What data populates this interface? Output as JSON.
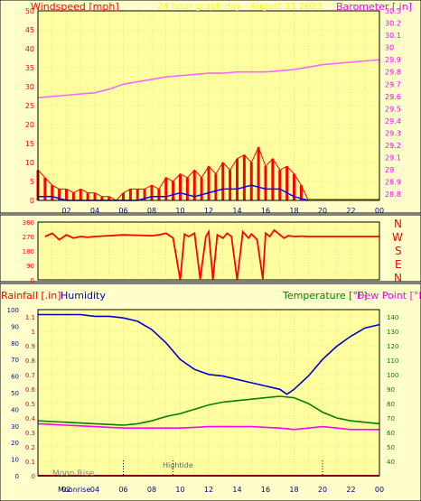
{
  "header": {
    "left_title": "Windspeed [mph]",
    "center_title": "24 hour graph day - August 11 2023",
    "right_title": "Barometer [.in]"
  },
  "colors": {
    "page_bg": "#ffffff",
    "panel_outer": "#ffffcc",
    "plot_bg": "#ffffa0",
    "grid": "#d8c890",
    "minor_grid": "#b0a880",
    "border": "#000000",
    "wind_axis_text": "#ff0000",
    "baro_axis_text": "#ff00ff",
    "title_center": "#ffff00",
    "wind_speed": "#ff0000",
    "wind_gust_blue": "#0000ff",
    "wind_green": "#008000",
    "barometer_line": "#ff66ff",
    "direction": "#ff0000",
    "compass_labels": "#ff0000",
    "rainfall": "#ff0000",
    "humidity": "#0000cc",
    "temperature": "#008000",
    "dewpoint": "#ff00ff",
    "x_labels": "#000080",
    "tide_marker": "#606060"
  },
  "chart_data": [
    {
      "type": "line",
      "name": "wind-barometer",
      "title": "24 hour graph day - August 11 2023",
      "xlabel": "",
      "ylabel_left": "Windspeed [mph]",
      "ylabel_right": "Barometer [.in]",
      "x_ticks": [
        "02",
        "04",
        "06",
        "08",
        "10",
        "12",
        "14",
        "16",
        "18",
        "20",
        "22",
        "00"
      ],
      "x_range": [
        0,
        24
      ],
      "y_left_range": [
        0,
        50
      ],
      "y_left_ticks": [
        0,
        5,
        10,
        15,
        20,
        25,
        30,
        35,
        40,
        45,
        50
      ],
      "y_right_range": [
        28.75,
        30.3
      ],
      "y_right_ticks": [
        "28.8",
        "28.9",
        "29",
        "29.1",
        "29.2",
        "29.3",
        "29.4",
        "29.5",
        "29.6",
        "29.7",
        "29.8",
        "29.9",
        "30",
        "30.1",
        "30.2",
        "30.3"
      ],
      "grid": true,
      "series": [
        {
          "name": "Barometer",
          "axis": "right",
          "x": [
            0,
            1,
            2,
            3,
            4,
            5,
            6,
            7,
            8,
            9,
            10,
            11,
            12,
            13,
            14,
            15,
            16,
            17,
            18,
            19,
            20,
            21,
            22,
            23,
            24
          ],
          "y": [
            29.59,
            29.6,
            29.61,
            29.62,
            29.63,
            29.66,
            29.7,
            29.72,
            29.74,
            29.76,
            29.77,
            29.78,
            29.79,
            29.79,
            29.8,
            29.8,
            29.8,
            29.81,
            29.82,
            29.84,
            29.86,
            29.87,
            29.88,
            29.89,
            29.9
          ]
        },
        {
          "name": "Wind speed",
          "axis": "left",
          "x": [
            0,
            0.5,
            1,
            1.5,
            2,
            2.5,
            3,
            3.5,
            4,
            4.5,
            5,
            5.5,
            6,
            6.5,
            7,
            7.5,
            8,
            8.5,
            9,
            9.5,
            10,
            10.5,
            11,
            11.5,
            12,
            12.5,
            13,
            13.5,
            14,
            14.5,
            15,
            15.5,
            16,
            16.5,
            17,
            17.5,
            18,
            18.5,
            19
          ],
          "y": [
            8,
            6,
            4,
            3,
            3,
            2,
            3,
            2,
            2,
            1,
            1,
            0,
            2,
            3,
            3,
            3,
            4,
            3,
            6,
            5,
            7,
            6,
            8,
            6,
            9,
            7,
            10,
            8,
            11,
            12,
            10,
            14,
            9,
            11,
            8,
            9,
            7,
            4,
            0
          ]
        },
        {
          "name": "Gust",
          "axis": "left",
          "x": [
            0,
            1,
            2,
            3,
            4,
            5,
            6,
            7,
            8,
            9,
            10,
            11,
            12,
            13,
            14,
            15,
            16,
            17,
            18,
            19
          ],
          "y": [
            1,
            1,
            0,
            0,
            0,
            0,
            0,
            0,
            1,
            1,
            2,
            1,
            2,
            3,
            3,
            4,
            3,
            3,
            1,
            0
          ]
        }
      ]
    },
    {
      "type": "line",
      "name": "wind-direction",
      "x_range": [
        0,
        24
      ],
      "y_range": [
        0,
        360
      ],
      "y_ticks": [
        0,
        45,
        90,
        135,
        180,
        225,
        270,
        315,
        360
      ],
      "compass_labels": [
        "N",
        "W",
        "S",
        "E",
        "N"
      ],
      "series": [
        {
          "name": "Wind direction",
          "x": [
            0.5,
            1,
            1.5,
            2,
            2.5,
            3,
            3.5,
            4,
            5,
            6,
            7,
            8,
            8.5,
            9,
            9.5,
            10,
            10.3,
            10.6,
            11,
            11.4,
            11.8,
            12,
            12.3,
            12.6,
            13,
            13.3,
            13.6,
            14,
            14.4,
            14.8,
            15,
            15.4,
            15.8,
            16,
            16.3,
            16.6,
            17,
            17.3,
            17.6,
            18,
            18.5,
            19,
            20,
            22,
            24
          ],
          "y": [
            270,
            290,
            250,
            280,
            260,
            270,
            265,
            270,
            275,
            280,
            278,
            275,
            280,
            290,
            260,
            0,
            285,
            270,
            290,
            5,
            270,
            300,
            0,
            280,
            260,
            290,
            270,
            0,
            300,
            260,
            285,
            250,
            5,
            290,
            270,
            310,
            280,
            260,
            275,
            270,
            272,
            270,
            270,
            270,
            270
          ]
        }
      ]
    },
    {
      "type": "line",
      "name": "temp-humidity",
      "ylabel_left_1": "Rainfall [.in]",
      "ylabel_left_2": "Humidity",
      "ylabel_right_1": "Temperature [°F]",
      "ylabel_right_2": "Dew Point [°F]",
      "x_ticks": [
        "02",
        "04",
        "06",
        "08",
        "10",
        "12",
        "14",
        "16",
        "18",
        "20",
        "22",
        "00"
      ],
      "x_range": [
        0,
        24
      ],
      "humidity_range": [
        0,
        100
      ],
      "humidity_ticks": [
        0,
        10,
        20,
        30,
        40,
        50,
        60,
        70,
        80,
        90,
        100
      ],
      "rain_range": [
        0,
        1.15
      ],
      "rain_ticks": [
        "0",
        "0.05",
        "0.1",
        "0.15",
        "0.2",
        "0.25",
        "0.3",
        "0.35",
        "0.4",
        "0.45",
        "0.5",
        "0.55",
        "0.6",
        "0.65",
        "0.7",
        "0.75",
        "0.8",
        "0.85",
        "0.9",
        "0.95",
        "1",
        "1.05",
        "1.1"
      ],
      "temp_range": [
        30,
        145
      ],
      "temp_ticks": [
        40,
        50,
        60,
        70,
        80,
        90,
        100,
        110,
        120,
        130,
        140
      ],
      "annotations": [
        {
          "label": "Moon Rise",
          "x": 2.4
        },
        {
          "label": "Hightide",
          "x": 9.5
        },
        {
          "label": "Moonrise",
          "x": 2.4
        }
      ],
      "tide_marks_x": [
        6,
        9.5,
        20
      ],
      "series": [
        {
          "name": "Humidity",
          "axis": "humidity",
          "x": [
            0,
            1,
            2,
            3,
            4,
            5,
            6,
            7,
            8,
            9,
            10,
            11,
            12,
            13,
            14,
            15,
            16,
            17,
            17.5,
            18,
            19,
            20,
            21,
            22,
            23,
            24
          ],
          "y": [
            97,
            97,
            97,
            97,
            96,
            96,
            95,
            93,
            88,
            80,
            70,
            64,
            61,
            60,
            58,
            56,
            54,
            52,
            49,
            52,
            60,
            70,
            78,
            84,
            89,
            91
          ]
        },
        {
          "name": "Temperature",
          "axis": "temp",
          "x": [
            0,
            1,
            2,
            3,
            4,
            5,
            6,
            7,
            8,
            9,
            10,
            11,
            12,
            13,
            14,
            15,
            16,
            17,
            18,
            19,
            20,
            21,
            22,
            23,
            24
          ],
          "y": [
            68,
            67.5,
            67,
            66.5,
            66,
            65.5,
            65,
            66,
            68,
            71,
            73,
            76,
            79,
            81,
            82,
            83,
            84,
            85,
            84,
            80,
            74,
            70,
            68,
            67,
            66
          ]
        },
        {
          "name": "Dew Point",
          "axis": "temp",
          "x": [
            0,
            1,
            2,
            3,
            4,
            5,
            6,
            7,
            8,
            9,
            10,
            11,
            12,
            13,
            14,
            15,
            16,
            17,
            18,
            19,
            20,
            21,
            22,
            23,
            24
          ],
          "y": [
            66,
            65.5,
            65,
            64.5,
            64,
            63.5,
            63,
            63,
            63,
            63,
            63,
            63.5,
            64,
            64,
            64,
            64,
            63.5,
            63,
            62,
            63,
            64,
            63,
            62,
            62,
            62
          ]
        },
        {
          "name": "Rainfall",
          "axis": "rain",
          "x": [
            0,
            24
          ],
          "y": [
            0,
            0
          ]
        }
      ]
    }
  ]
}
